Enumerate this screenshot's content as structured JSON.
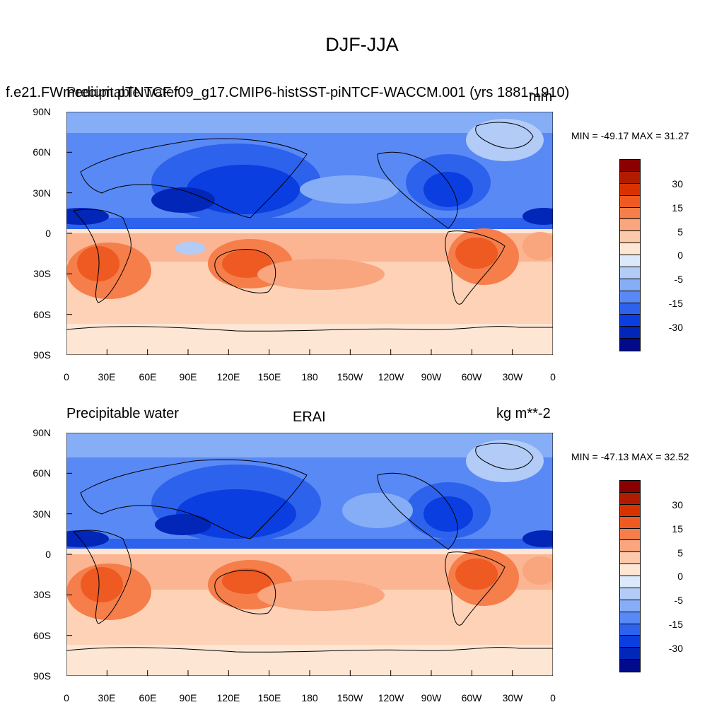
{
  "figure": {
    "title": "DJF-JJA"
  },
  "panels": [
    {
      "left_label": "Precipitable water",
      "center_label": "f.e21.FWmedium.pTNTCF.f09_g17.CMIP6-histSST-piNTCF-WACCM.001 (yrs 1881-1910)",
      "right_label": "mm",
      "stats": "MIN = -49.17 MAX =  31.27"
    },
    {
      "left_label": "Precipitable water",
      "center_label": "ERAI",
      "right_label": "kg m**-2",
      "stats": "MIN = -47.13 MAX =  32.52"
    }
  ],
  "axes": {
    "lat_labels": [
      "90N",
      "60N",
      "30N",
      "0",
      "30S",
      "60S",
      "90S"
    ],
    "lon_labels": [
      "0",
      "30E",
      "60E",
      "90E",
      "120E",
      "150E",
      "180",
      "150W",
      "120W",
      "90W",
      "60W",
      "30W",
      "0"
    ]
  },
  "colorbar": {
    "labels": [
      "30",
      "15",
      "5",
      "0",
      "-5",
      "-15",
      "-30"
    ],
    "colors": [
      "#8a0000",
      "#b01c00",
      "#d83200",
      "#ee5a22",
      "#f57e4a",
      "#f9a57e",
      "#fcc9aa",
      "#fde6d4",
      "#dbe9fb",
      "#b2ccf7",
      "#86aef6",
      "#5989f5",
      "#2d62ec",
      "#0b3ee0",
      "#0126b8",
      "#000a8a"
    ]
  }
}
